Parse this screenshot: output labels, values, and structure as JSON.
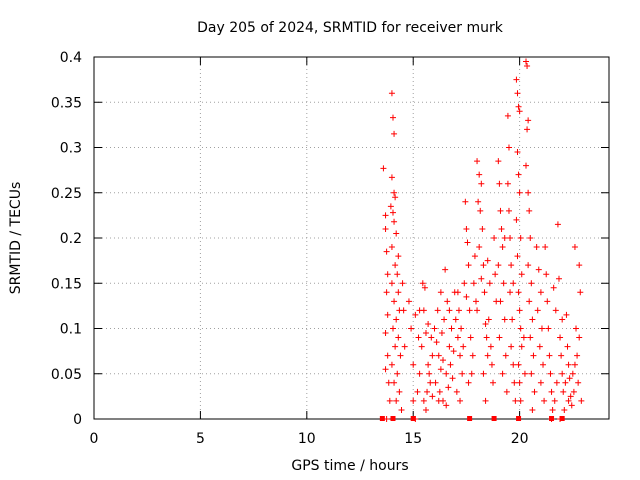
{
  "chart_data": {
    "type": "scatter",
    "title": "Day 205 of 2024, SRMTID for receiver murk",
    "xlabel": "GPS time / hours",
    "ylabel": "SRMTID / TECUs",
    "xlim": [
      0,
      24.2
    ],
    "ylim": [
      0,
      0.4
    ],
    "xticks": [
      0,
      5,
      10,
      15,
      20
    ],
    "xtick_labels": [
      "0",
      "5",
      "10",
      "15",
      "20"
    ],
    "yticks": [
      0,
      0.05,
      0.1,
      0.15,
      0.2,
      0.25,
      0.3,
      0.35,
      0.4
    ],
    "ytick_labels": [
      "0",
      "0.05",
      "0.1",
      "0.15",
      "0.2",
      "0.25",
      "0.3",
      "0.35",
      "0.4"
    ],
    "grid": true,
    "marker": "+",
    "color": "#ff0000",
    "series": [
      {
        "name": "SRMTID",
        "points": [
          [
            13.6,
            0.277
          ],
          [
            13.7,
            0.225
          ],
          [
            13.7,
            0.21
          ],
          [
            13.75,
            0.185
          ],
          [
            13.8,
            0.16
          ],
          [
            13.75,
            0.14
          ],
          [
            13.8,
            0.115
          ],
          [
            13.7,
            0.095
          ],
          [
            13.8,
            0.07
          ],
          [
            13.7,
            0.055
          ],
          [
            13.85,
            0.04
          ],
          [
            13.9,
            0.02
          ],
          [
            13.75,
            0.0
          ],
          [
            14.0,
            0.36
          ],
          [
            14.05,
            0.333
          ],
          [
            14.1,
            0.315
          ],
          [
            14.0,
            0.267
          ],
          [
            14.1,
            0.25
          ],
          [
            14.15,
            0.245
          ],
          [
            13.95,
            0.235
          ],
          [
            14.05,
            0.228
          ],
          [
            14.1,
            0.218
          ],
          [
            14.2,
            0.205
          ],
          [
            14.0,
            0.19
          ],
          [
            14.3,
            0.18
          ],
          [
            14.15,
            0.17
          ],
          [
            14.25,
            0.16
          ],
          [
            14.0,
            0.15
          ],
          [
            14.3,
            0.14
          ],
          [
            14.1,
            0.13
          ],
          [
            14.35,
            0.12
          ],
          [
            14.2,
            0.11
          ],
          [
            14.05,
            0.1
          ],
          [
            14.3,
            0.09
          ],
          [
            14.15,
            0.08
          ],
          [
            14.4,
            0.07
          ],
          [
            14.0,
            0.06
          ],
          [
            14.25,
            0.05
          ],
          [
            14.1,
            0.04
          ],
          [
            14.35,
            0.03
          ],
          [
            14.2,
            0.02
          ],
          [
            14.45,
            0.01
          ],
          [
            14.5,
            0.15
          ],
          [
            14.55,
            0.12
          ],
          [
            14.6,
            0.08
          ],
          [
            14.8,
            0.13
          ],
          [
            14.9,
            0.1
          ],
          [
            15.0,
            0.06
          ],
          [
            15.1,
            0.115
          ],
          [
            15.0,
            0.02
          ],
          [
            15.2,
            0.03
          ],
          [
            15.3,
            0.05
          ],
          [
            15.1,
            0.0
          ],
          [
            15.4,
            0.08
          ],
          [
            15.5,
            0.12
          ],
          [
            15.6,
            0.095
          ],
          [
            15.7,
            0.06
          ],
          [
            15.8,
            0.04
          ],
          [
            15.5,
            0.02
          ],
          [
            15.6,
            0.01
          ],
          [
            15.9,
            0.07
          ],
          [
            15.45,
            0.15
          ],
          [
            15.55,
            0.145
          ],
          [
            15.7,
            0.105
          ],
          [
            15.85,
            0.09
          ],
          [
            15.65,
            0.03
          ],
          [
            15.75,
            0.05
          ],
          [
            15.9,
            0.025
          ],
          [
            16.0,
            0.1
          ],
          [
            16.1,
            0.085
          ],
          [
            16.2,
            0.07
          ],
          [
            16.3,
            0.055
          ],
          [
            16.05,
            0.04
          ],
          [
            16.15,
            0.12
          ],
          [
            16.25,
            0.03
          ],
          [
            16.35,
            0.095
          ],
          [
            16.45,
            0.11
          ],
          [
            16.5,
            0.165
          ],
          [
            16.6,
            0.13
          ],
          [
            16.7,
            0.08
          ],
          [
            16.55,
            0.05
          ],
          [
            16.65,
            0.035
          ],
          [
            16.8,
            0.1
          ],
          [
            16.9,
            0.075
          ],
          [
            16.75,
            0.06
          ],
          [
            16.85,
            0.045
          ],
          [
            16.95,
            0.14
          ],
          [
            16.4,
            0.065
          ],
          [
            16.2,
            0.02
          ],
          [
            16.55,
            0.015
          ],
          [
            17.0,
            0.11
          ],
          [
            17.1,
            0.09
          ],
          [
            17.2,
            0.07
          ],
          [
            17.3,
            0.05
          ],
          [
            17.05,
            0.03
          ],
          [
            17.15,
            0.12
          ],
          [
            17.25,
            0.1
          ],
          [
            17.35,
            0.08
          ],
          [
            17.4,
            0.15
          ],
          [
            17.5,
            0.21
          ],
          [
            17.45,
            0.24
          ],
          [
            17.55,
            0.195
          ],
          [
            17.6,
            0.17
          ],
          [
            17.5,
            0.135
          ],
          [
            17.65,
            0.12
          ],
          [
            17.7,
            0.09
          ],
          [
            17.8,
            0.07
          ],
          [
            17.75,
            0.05
          ],
          [
            17.85,
            0.15
          ],
          [
            17.9,
            0.18
          ],
          [
            17.95,
            0.13
          ],
          [
            18.0,
            0.285
          ],
          [
            18.1,
            0.27
          ],
          [
            18.2,
            0.26
          ],
          [
            18.05,
            0.24
          ],
          [
            18.15,
            0.23
          ],
          [
            18.25,
            0.21
          ],
          [
            18.1,
            0.19
          ],
          [
            18.3,
            0.17
          ],
          [
            18.2,
            0.155
          ],
          [
            18.35,
            0.14
          ],
          [
            18.0,
            0.12
          ],
          [
            18.4,
            0.105
          ],
          [
            18.45,
            0.09
          ],
          [
            18.5,
            0.175
          ],
          [
            18.6,
            0.15
          ],
          [
            18.55,
            0.11
          ],
          [
            18.65,
            0.08
          ],
          [
            18.7,
            0.06
          ],
          [
            18.75,
            0.04
          ],
          [
            18.8,
            0.2
          ],
          [
            18.85,
            0.16
          ],
          [
            18.9,
            0.13
          ],
          [
            19.0,
            0.285
          ],
          [
            19.05,
            0.26
          ],
          [
            19.1,
            0.23
          ],
          [
            19.15,
            0.21
          ],
          [
            19.2,
            0.19
          ],
          [
            19.0,
            0.17
          ],
          [
            19.25,
            0.15
          ],
          [
            19.1,
            0.13
          ],
          [
            19.3,
            0.11
          ],
          [
            19.05,
            0.09
          ],
          [
            19.35,
            0.07
          ],
          [
            19.2,
            0.05
          ],
          [
            19.4,
            0.03
          ],
          [
            19.45,
            0.335
          ],
          [
            19.5,
            0.3
          ],
          [
            19.45,
            0.26
          ],
          [
            19.5,
            0.23
          ],
          [
            19.55,
            0.2
          ],
          [
            19.6,
            0.17
          ],
          [
            19.55,
            0.14
          ],
          [
            19.65,
            0.11
          ],
          [
            19.6,
            0.08
          ],
          [
            19.7,
            0.06
          ],
          [
            19.75,
            0.04
          ],
          [
            19.8,
            0.02
          ],
          [
            19.85,
            0.375
          ],
          [
            19.9,
            0.36
          ],
          [
            19.95,
            0.345
          ],
          [
            20.0,
            0.34
          ],
          [
            19.9,
            0.295
          ],
          [
            19.95,
            0.27
          ],
          [
            20.0,
            0.25
          ],
          [
            19.85,
            0.22
          ],
          [
            20.05,
            0.2
          ],
          [
            19.9,
            0.18
          ],
          [
            20.1,
            0.16
          ],
          [
            19.95,
            0.14
          ],
          [
            20.0,
            0.12
          ],
          [
            20.05,
            0.1
          ],
          [
            20.1,
            0.08
          ],
          [
            19.95,
            0.06
          ],
          [
            20.0,
            0.04
          ],
          [
            20.05,
            0.02
          ],
          [
            20.3,
            0.395
          ],
          [
            20.35,
            0.39
          ],
          [
            20.4,
            0.33
          ],
          [
            20.35,
            0.32
          ],
          [
            20.3,
            0.28
          ],
          [
            20.4,
            0.25
          ],
          [
            20.45,
            0.23
          ],
          [
            20.5,
            0.2
          ],
          [
            20.4,
            0.17
          ],
          [
            20.55,
            0.15
          ],
          [
            20.45,
            0.13
          ],
          [
            20.6,
            0.11
          ],
          [
            20.5,
            0.09
          ],
          [
            20.65,
            0.07
          ],
          [
            20.55,
            0.05
          ],
          [
            20.7,
            0.03
          ],
          [
            20.6,
            0.01
          ],
          [
            20.8,
            0.19
          ],
          [
            20.9,
            0.165
          ],
          [
            21.0,
            0.14
          ],
          [
            20.85,
            0.12
          ],
          [
            21.05,
            0.1
          ],
          [
            20.95,
            0.08
          ],
          [
            21.1,
            0.06
          ],
          [
            21.0,
            0.04
          ],
          [
            21.15,
            0.02
          ],
          [
            21.2,
            0.19
          ],
          [
            21.25,
            0.16
          ],
          [
            21.3,
            0.13
          ],
          [
            21.35,
            0.1
          ],
          [
            21.4,
            0.07
          ],
          [
            21.45,
            0.05
          ],
          [
            21.5,
            0.03
          ],
          [
            21.55,
            0.01
          ],
          [
            21.6,
            0.145
          ],
          [
            21.7,
            0.12
          ],
          [
            21.8,
            0.215
          ],
          [
            21.85,
            0.155
          ],
          [
            21.9,
            0.09
          ],
          [
            21.95,
            0.07
          ],
          [
            22.0,
            0.05
          ],
          [
            22.05,
            0.03
          ],
          [
            22.1,
            0.01
          ],
          [
            22.15,
            0.04
          ],
          [
            22.2,
            0.115
          ],
          [
            22.25,
            0.08
          ],
          [
            22.3,
            0.06
          ],
          [
            22.35,
            0.045
          ],
          [
            22.4,
            0.025
          ],
          [
            22.45,
            0.015
          ],
          [
            22.5,
            0.05
          ],
          [
            22.55,
            0.03
          ],
          [
            22.6,
            0.19
          ],
          [
            22.65,
            0.1
          ],
          [
            22.7,
            0.07
          ],
          [
            22.75,
            0.04
          ],
          [
            22.8,
            0.17
          ],
          [
            22.85,
            0.14
          ],
          [
            22.9,
            0.02
          ],
          [
            21.75,
            0.04
          ],
          [
            22.0,
            0.11
          ],
          [
            22.3,
            0.02
          ],
          [
            22.6,
            0.06
          ],
          [
            22.8,
            0.09
          ],
          [
            21.65,
            0.02
          ],
          [
            21.9,
            0.0
          ],
          [
            21.5,
            0.0
          ],
          [
            15.3,
            0.12
          ],
          [
            15.25,
            0.09
          ],
          [
            16.3,
            0.14
          ],
          [
            16.4,
            0.02
          ],
          [
            16.7,
            0.12
          ],
          [
            17.1,
            0.14
          ],
          [
            17.2,
            0.02
          ],
          [
            17.6,
            0.04
          ],
          [
            18.3,
            0.05
          ],
          [
            18.4,
            0.02
          ],
          [
            18.5,
            0.07
          ],
          [
            19.3,
            0.2
          ],
          [
            19.7,
            0.15
          ],
          [
            20.2,
            0.09
          ],
          [
            20.25,
            0.05
          ]
        ]
      }
    ],
    "baseline_squares_x": [
      13.55,
      14.05,
      15.0,
      17.65,
      18.8,
      19.95,
      21.5,
      22.0
    ]
  }
}
